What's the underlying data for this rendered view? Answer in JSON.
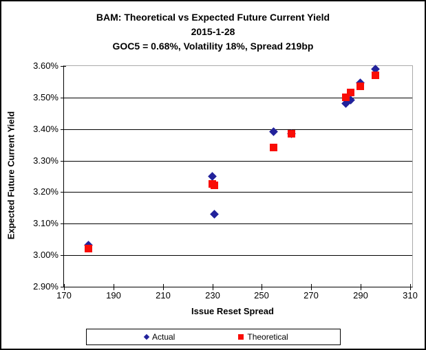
{
  "title": {
    "line1": "BAM: Theoretical vs Expected Future Current Yield",
    "line2": "2015-1-28",
    "line3": "GOC5 = 0.68%, Volatility 18%, Spread 219bp"
  },
  "colors": {
    "actual": "#22229B",
    "theoretical": "#F90D06",
    "gridline": "#000000",
    "plot_border": "#A9A9A9",
    "axis": "#000000",
    "background": "#FFFFFF",
    "frame_border": "#000000"
  },
  "chart_data": {
    "type": "scatter",
    "title": "BAM: Theoretical vs Expected Future Current Yield",
    "subtitle": "2015-1-28",
    "subtitle2": "GOC5 = 0.68%, Volatility 18%, Spread 219bp",
    "xlabel": "Issue Reset Spread",
    "ylabel": "Expected Future Current Yield",
    "xlim": [
      170,
      310
    ],
    "ylim": [
      2.9,
      3.6
    ],
    "x_ticks": [
      170,
      190,
      210,
      230,
      250,
      270,
      290,
      310
    ],
    "x_tick_labels": [
      "170",
      "190",
      "210",
      "230",
      "250",
      "270",
      "290",
      "310"
    ],
    "y_ticks": [
      2.9,
      3.0,
      3.1,
      3.2,
      3.3,
      3.4,
      3.5,
      3.6
    ],
    "y_tick_labels": [
      "2.90%",
      "3.00%",
      "3.10%",
      "3.20%",
      "3.30%",
      "3.40%",
      "3.50%",
      "3.60%"
    ],
    "grid": "horizontal-major",
    "legend_position": "bottom",
    "x": [
      180,
      230,
      231,
      255,
      262,
      284,
      286,
      290,
      296
    ],
    "series": [
      {
        "name": "Actual",
        "marker": "diamond",
        "color": "#22229B",
        "values": [
          3.03,
          3.25,
          3.13,
          3.39,
          3.385,
          3.48,
          3.49,
          3.545,
          3.59
        ]
      },
      {
        "name": "Theoretical",
        "marker": "square",
        "color": "#F90D06",
        "values": [
          3.02,
          3.225,
          3.22,
          3.34,
          3.385,
          3.5,
          3.515,
          3.535,
          3.57
        ]
      }
    ]
  }
}
